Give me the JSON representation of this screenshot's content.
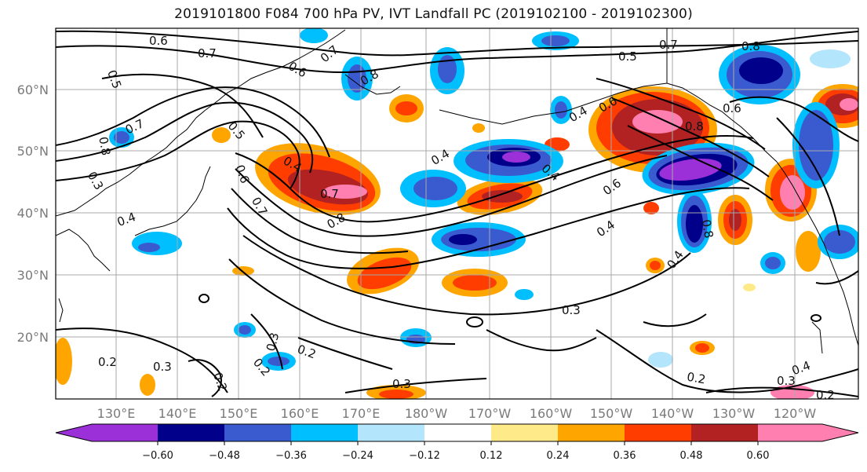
{
  "title": "2019101800 F084 700 hPa PV, IVT Landfall PC (2019102100 - 2019102300)",
  "map": {
    "lon_labels": [
      "130°E",
      "140°E",
      "150°E",
      "160°E",
      "170°E",
      "180°W",
      "170°W",
      "160°W",
      "150°W",
      "140°W",
      "130°W",
      "120°W"
    ],
    "lat_labels": [
      "60°N",
      "50°N",
      "40°N",
      "30°N",
      "20°N"
    ],
    "gridlines": true,
    "contour_labels": [
      "0.6",
      "0.7",
      "0.5",
      "0.6",
      "0.7",
      "0.8",
      "0.5",
      "0.7",
      "0.8",
      "0.7",
      "0.8",
      "0.4",
      "0.6",
      "0.6",
      "0.8",
      "0.7",
      "0.5",
      "0.6",
      "0.3",
      "0.4",
      "0.4",
      "0.4",
      "0.7",
      "0.8",
      "0.4",
      "0.8",
      "0.6",
      "0.4",
      "0.4",
      "0.3",
      "0.3",
      "0.2",
      "0.2",
      "0.3",
      "0.2",
      "0.2",
      "0.3",
      "0.2",
      "0.4",
      "0.3",
      "0.2"
    ]
  },
  "colorbar": {
    "tick_labels": [
      "−0.60",
      "−0.48",
      "−0.36",
      "−0.24",
      "−0.12",
      "0.12",
      "0.24",
      "0.36",
      "0.48",
      "0.60"
    ],
    "colors": [
      "#9b30d9",
      "#00008b",
      "#3a5bcf",
      "#00bfff",
      "#b3e5fc",
      "#ffffff",
      "#ffea8a",
      "#ffa500",
      "#ff3d00",
      "#b22222",
      "#ff80b0"
    ]
  }
}
